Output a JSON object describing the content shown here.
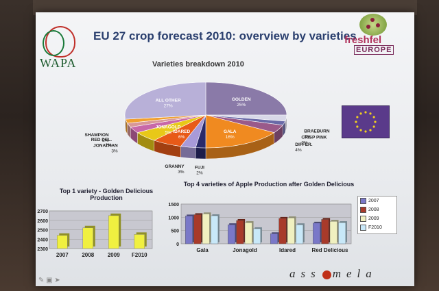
{
  "slide": {
    "title": "EU 27 crop forecast 2010: overview by varieties",
    "logo_left_text": "WAPA",
    "logo_right_name": "freshfel",
    "logo_right_sub": "EUROPE",
    "brand_left": "ass",
    "brand_right": "mela"
  },
  "chart_data": [
    {
      "type": "pie",
      "title": "Varieties breakdown 2010",
      "slices": [
        {
          "label": "GOLDEN",
          "value": 25,
          "display": "25%",
          "color": "#8a7aa8"
        },
        {
          "label": "BRAEBURN",
          "value": 3,
          "display": "3%",
          "color": "#d8d8e8"
        },
        {
          "label": "CRISP PINK",
          "value": 2,
          "display": "2%",
          "color": "#6a6aa8"
        },
        {
          "label": "DIFFER.",
          "value": 4,
          "display": "4%",
          "color": "#9a5a8a"
        },
        {
          "label": "GALA",
          "value": 16,
          "display": "16%",
          "color": "#f08a20"
        },
        {
          "label": "FUJI",
          "value": 2,
          "display": "2%",
          "color": "#2a2a6a"
        },
        {
          "label": "GRANNY",
          "value": 3,
          "display": "3%",
          "color": "#a89ad8"
        },
        {
          "label": "IDARED",
          "value": 6,
          "display": "6%",
          "color": "#e85a18"
        },
        {
          "label": "JONAGOLD",
          "value": 5,
          "display": "5%",
          "color": "#e8c818"
        },
        {
          "label": "JONATHAN",
          "value": 3,
          "display": "3%",
          "color": "#c868a8"
        },
        {
          "label": "RED DEL.",
          "value": 2,
          "display": "2%",
          "color": "#d89898"
        },
        {
          "label": "SHAMPION",
          "value": 2,
          "display": "2%",
          "color": "#f0a030"
        },
        {
          "label": "ALL OTHER",
          "value": 27,
          "display": "27%",
          "color": "#b8b0d8"
        }
      ]
    },
    {
      "type": "bar",
      "title_line1": "Top 1 variety - Golden Delicious",
      "title_line2": "Production",
      "categories": [
        "2007",
        "2008",
        "2009",
        "F2010"
      ],
      "values": [
        2440,
        2520,
        2650,
        2450
      ],
      "ylim": [
        2300,
        2700
      ],
      "yticks": [
        "2300",
        "2400",
        "2500",
        "2600",
        "2700"
      ],
      "color": "#f0f040",
      "grid": true
    },
    {
      "type": "bar",
      "title": "Top 4 varieties of Apple Production after Golden Delicious",
      "categories": [
        "Gala",
        "Jonagold",
        "Idared",
        "Red Delicious"
      ],
      "ylim": [
        0,
        1500
      ],
      "yticks": [
        "0",
        "500",
        "1000",
        "1500"
      ],
      "grid": true,
      "series": [
        {
          "name": "2007",
          "values": [
            1050,
            720,
            380,
            780
          ],
          "color": "#7a78c8"
        },
        {
          "name": "2008",
          "values": [
            1100,
            880,
            960,
            920
          ],
          "color": "#a83a2a"
        },
        {
          "name": "2009",
          "values": [
            1130,
            800,
            980,
            850
          ],
          "color": "#f0f0c0"
        },
        {
          "name": "F2010",
          "values": [
            1060,
            570,
            720,
            800
          ],
          "color": "#c8e8f8"
        }
      ]
    }
  ]
}
